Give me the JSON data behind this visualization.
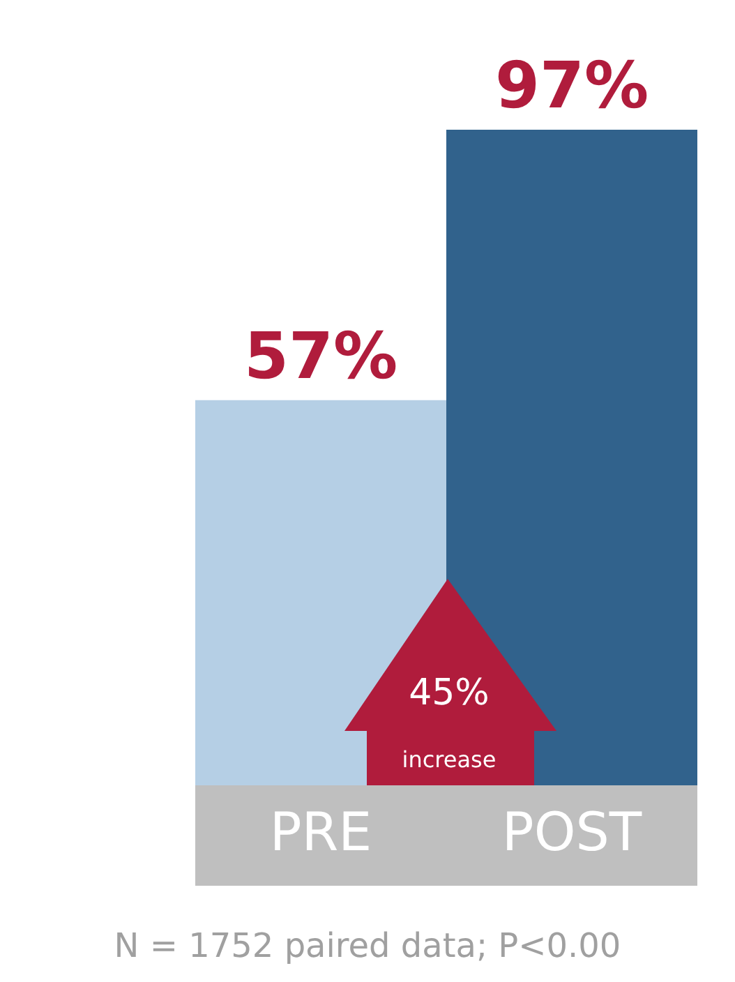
{
  "chart_data": {
    "type": "bar",
    "categories": [
      "PRE",
      "POST"
    ],
    "values": [
      57,
      97
    ],
    "colors": [
      "#b5cfe5",
      "#31628c"
    ],
    "value_labels": [
      "57%",
      "97%"
    ],
    "annotations": [
      "45%",
      "increase",
      "N = 1752 paired data; P<0.00"
    ]
  }
}
